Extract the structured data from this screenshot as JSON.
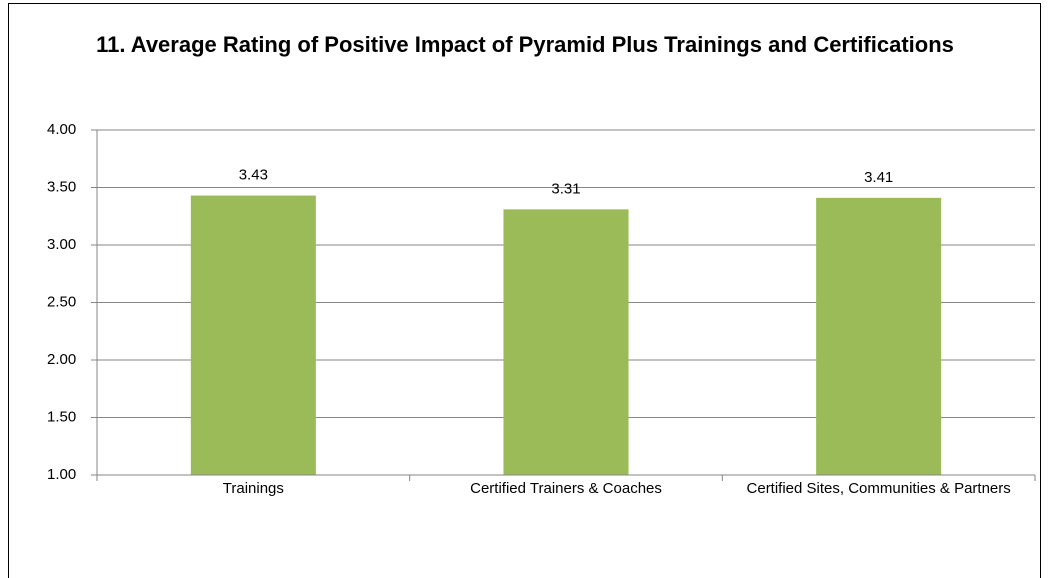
{
  "chart_data": {
    "type": "bar",
    "title": "11. Average Rating of Positive Impact of Pyramid Plus Trainings and Certifications",
    "categories": [
      "Trainings",
      "Certified Trainers & Coaches",
      "Certified Sites, Communities & Partners"
    ],
    "values": [
      3.43,
      3.31,
      3.41
    ],
    "color": "#9bbb59",
    "ylim": [
      1,
      4
    ],
    "yticks": [
      {
        "value": 1,
        "label": "1.00"
      },
      {
        "value": 1.5,
        "label": "1.50"
      },
      {
        "value": 2,
        "label": "2.00"
      },
      {
        "value": 2.5,
        "label": "2.50"
      },
      {
        "value": 3,
        "label": "3.00"
      },
      {
        "value": 3.5,
        "label": "3.50"
      },
      {
        "value": 4,
        "label": "4.00"
      }
    ],
    "grid": true
  }
}
